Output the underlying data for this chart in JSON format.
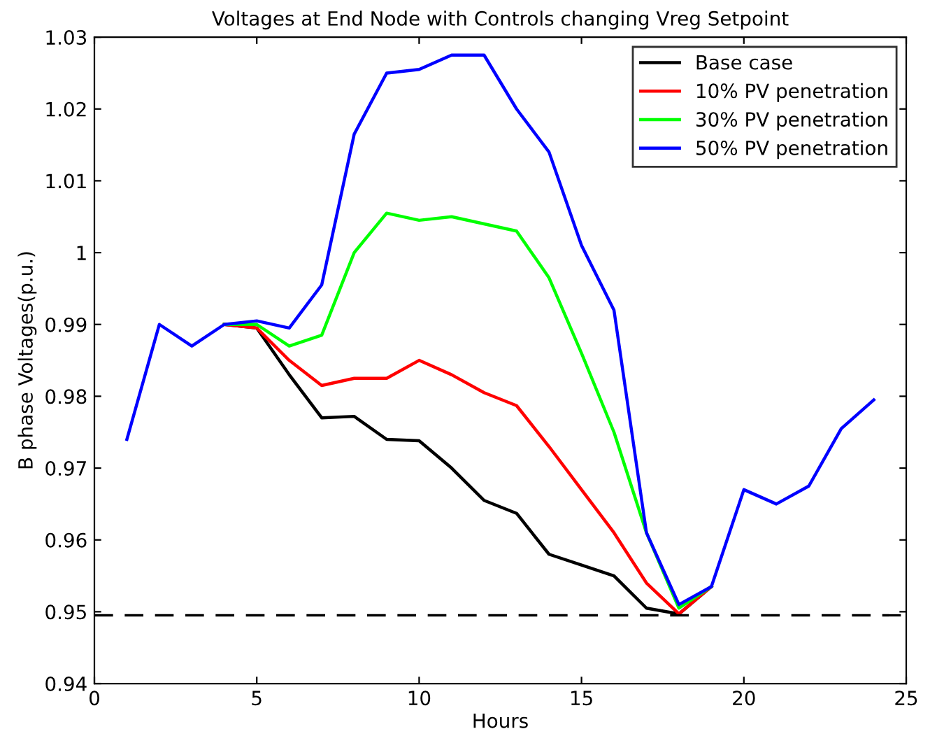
{
  "chart_data": {
    "type": "line",
    "title": "Voltages at End Node with Controls changing Vreg Setpoint",
    "xlabel": "Hours",
    "ylabel": "B phase Voltages(p.u.)",
    "x": [
      1,
      2,
      3,
      4,
      5,
      6,
      7,
      8,
      9,
      10,
      11,
      12,
      13,
      14,
      15,
      16,
      17,
      18,
      19,
      20,
      21,
      22,
      23,
      24
    ],
    "series": [
      {
        "name": "Base case",
        "color": "#000000",
        "values": [
          null,
          null,
          null,
          0.99,
          0.9895,
          0.983,
          0.977,
          0.9772,
          0.974,
          0.9738,
          0.97,
          0.9655,
          0.9637,
          0.958,
          0.9565,
          0.955,
          0.9505,
          0.9497,
          0.9535,
          null,
          null,
          null,
          null,
          null
        ]
      },
      {
        "name": "10% PV penetration",
        "color": "#ff0000",
        "values": [
          null,
          null,
          null,
          0.99,
          0.9895,
          0.985,
          0.9815,
          0.9825,
          0.9825,
          0.985,
          0.983,
          0.9805,
          0.9787,
          0.973,
          0.967,
          0.961,
          0.954,
          0.9497,
          0.9535,
          null,
          null,
          null,
          null,
          null
        ]
      },
      {
        "name": "30% PV penetration",
        "color": "#00ff00",
        "values": [
          null,
          null,
          null,
          0.99,
          0.99,
          0.987,
          0.9885,
          1.0,
          1.0055,
          1.0045,
          1.005,
          1.004,
          1.003,
          0.9965,
          0.986,
          0.975,
          0.961,
          0.9505,
          0.9535,
          null,
          null,
          null,
          null,
          null
        ]
      },
      {
        "name": "50% PV penetration",
        "color": "#0000ff",
        "values": [
          0.974,
          0.99,
          0.987,
          0.99,
          0.9905,
          0.9895,
          0.9955,
          1.0165,
          1.025,
          1.0255,
          1.0275,
          1.0275,
          1.02,
          1.014,
          1.001,
          0.992,
          0.961,
          0.951,
          0.9535,
          0.967,
          0.965,
          0.9675,
          0.9755,
          0.9795
        ]
      }
    ],
    "xlim": [
      0,
      25
    ],
    "xticks": [
      0,
      5,
      10,
      15,
      20,
      25
    ],
    "ylim": [
      0.94,
      1.03
    ],
    "yticks": [
      0.94,
      0.95,
      0.96,
      0.97,
      0.98,
      0.99,
      {
        "value": 1.0,
        "label": "1"
      },
      1.01,
      1.02,
      1.03
    ],
    "ref_lines": [
      {
        "axis": "y",
        "value": 0.9495,
        "color": "#000000",
        "line_style": "dashed"
      }
    ],
    "grid": false,
    "legend": "top right",
    "marker": "none",
    "line_style": "solid"
  }
}
